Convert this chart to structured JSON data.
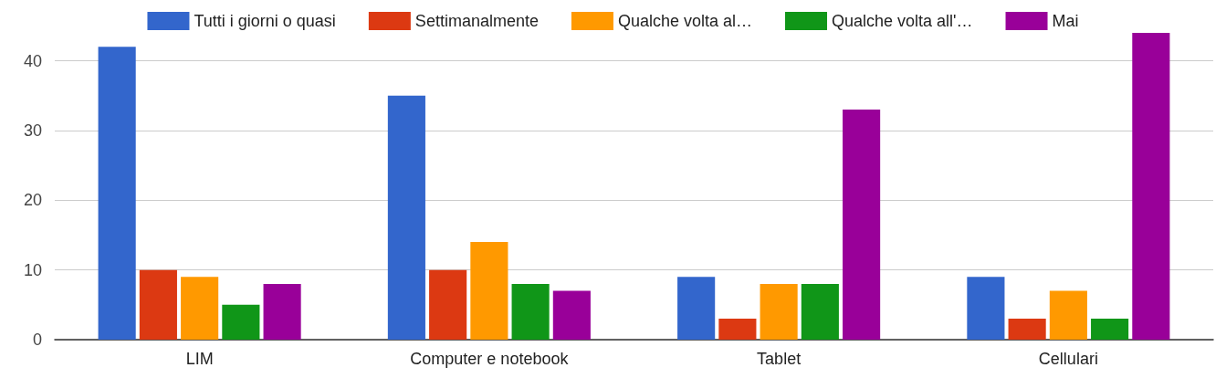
{
  "chart_data": {
    "type": "bar",
    "categories": [
      "LIM",
      "Computer e notebook",
      "Tablet",
      "Cellulari"
    ],
    "series": [
      {
        "name": "Tutti i giorni o quasi",
        "color": "#3366cc",
        "values": [
          42,
          35,
          9,
          9
        ]
      },
      {
        "name": "Settimanalmente",
        "color": "#dc3912",
        "values": [
          10,
          10,
          3,
          3
        ]
      },
      {
        "name": "Qualche volta al…",
        "color": "#ff9900",
        "values": [
          9,
          14,
          8,
          7
        ]
      },
      {
        "name": "Qualche volta all'…",
        "color": "#109618",
        "values": [
          5,
          8,
          8,
          3
        ]
      },
      {
        "name": "Mai",
        "color": "#990099",
        "values": [
          8,
          7,
          33,
          44
        ]
      }
    ],
    "ylim": [
      0,
      44
    ],
    "yticks": [
      0,
      10,
      20,
      30,
      40
    ],
    "grid": "y",
    "legend": "top"
  }
}
